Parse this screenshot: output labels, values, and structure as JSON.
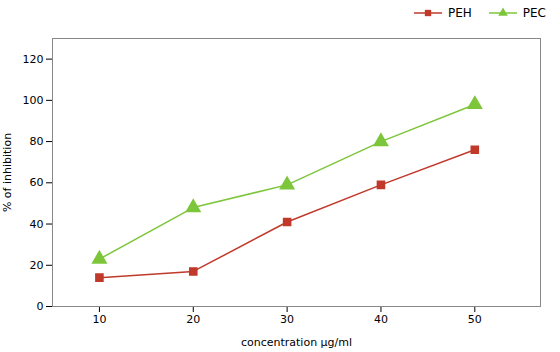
{
  "chart_data": {
    "type": "line",
    "x": [
      10,
      20,
      30,
      40,
      50
    ],
    "series": [
      {
        "name": "PEH",
        "color": "#c0392b",
        "marker": "square",
        "values": [
          14,
          17,
          41,
          59,
          76
        ]
      },
      {
        "name": "PEC",
        "color": "#7dc63b",
        "marker": "triangle",
        "values": [
          23,
          48,
          59,
          80,
          98
        ]
      }
    ],
    "xlabel": "concentration μg/ml",
    "ylabel": "% of inhibition",
    "xlim": [
      5,
      57
    ],
    "ylim": [
      0,
      130
    ],
    "xticks": [
      10,
      20,
      30,
      40,
      50
    ],
    "yticks": [
      0,
      20,
      40,
      60,
      80,
      100,
      120
    ],
    "grid": false,
    "legend": "upper right"
  }
}
